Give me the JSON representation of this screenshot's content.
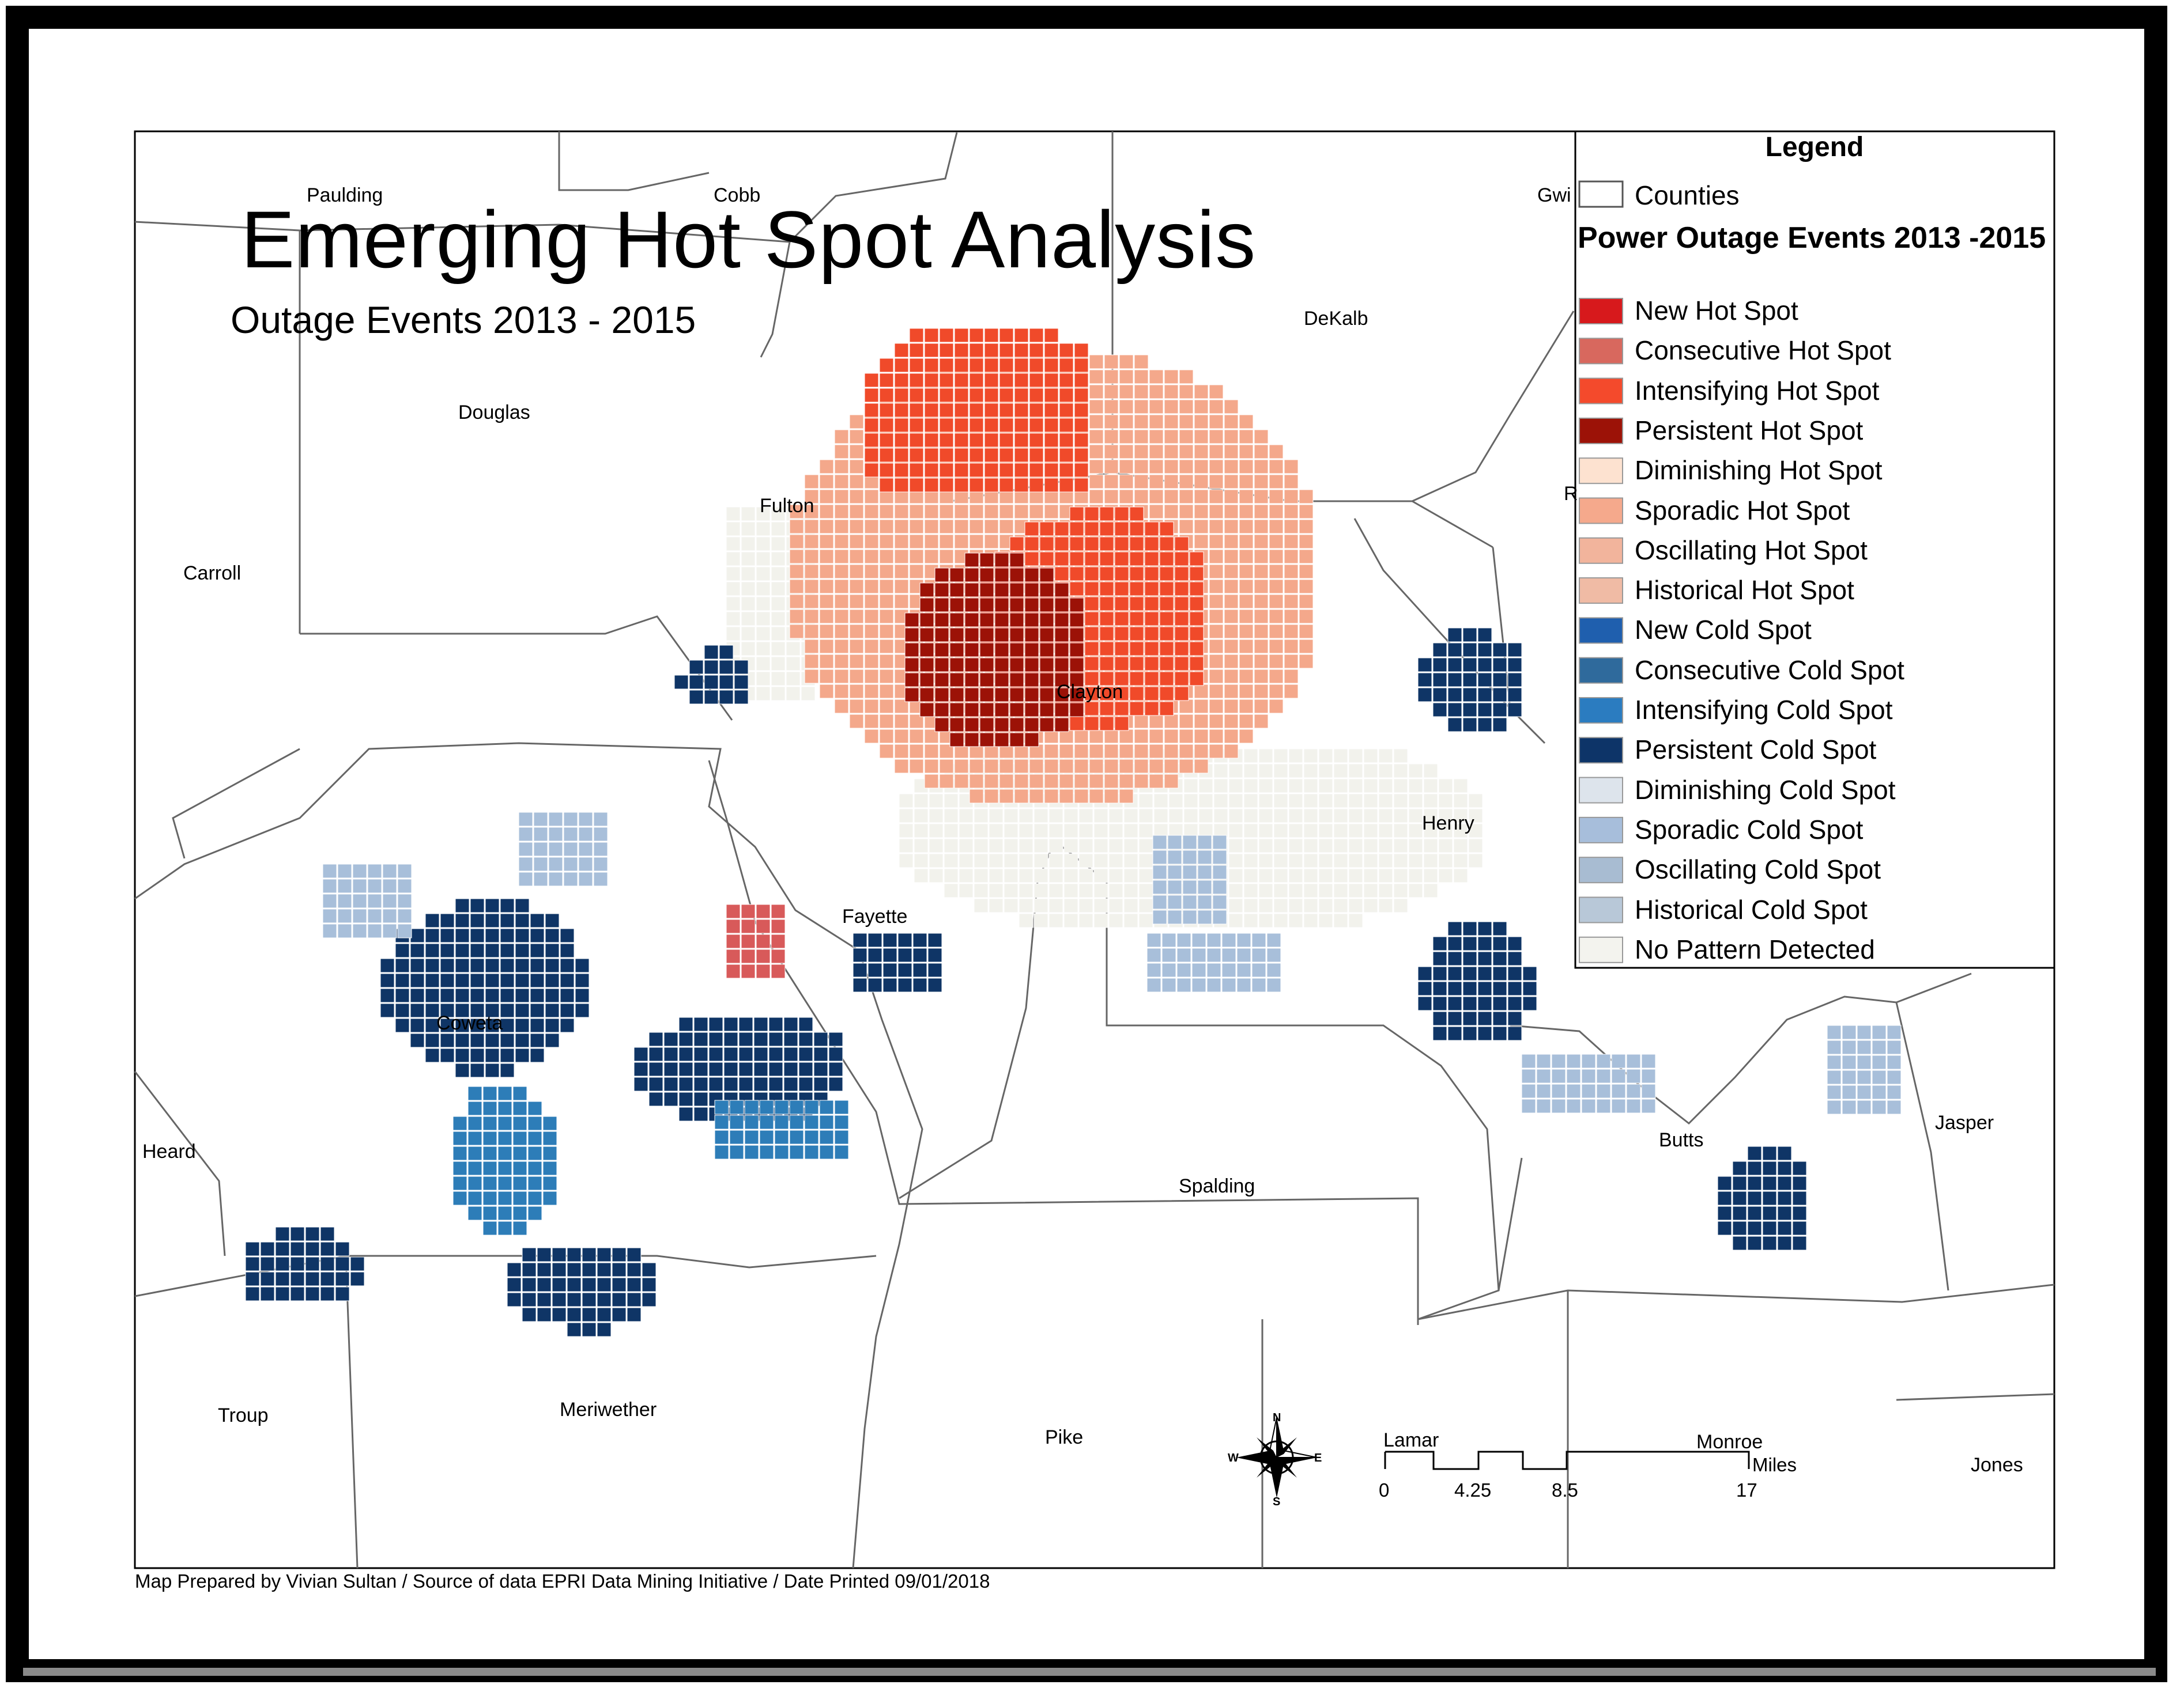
{
  "map": {
    "title": "Emerging Hot Spot Analysis",
    "subtitle": "Outage Events 2013 - 2015",
    "footer": "Map Prepared by Vivian Sultan / Source of data EPRI Data Mining Initiative / Date Printed 09/01/2018"
  },
  "counties": {
    "paulding": "Paulding",
    "cobb": "Cobb",
    "gwinnett": "Gwi",
    "dekalb": "DeKalb",
    "douglas": "Douglas",
    "fulton": "Fulton",
    "carroll": "Carroll",
    "clayton": "Clayton",
    "fayette": "Fayette",
    "henry": "Henry",
    "rockdale": "R",
    "coweta": "Coweta",
    "heard": "Heard",
    "spalding": "Spalding",
    "butts": "Butts",
    "jasper": "Jasper",
    "troup": "Troup",
    "meriwether": "Meriwether",
    "pike": "Pike",
    "lamar": "Lamar",
    "monroe": "Monroe",
    "jones": "Jones"
  },
  "legend": {
    "heading": "Legend",
    "counties_label": "Counties",
    "group_title": "Power Outage Events 2013 -2015",
    "items": [
      {
        "label": "New Hot Spot",
        "color": "#d7191c"
      },
      {
        "label": "Consecutive Hot Spot",
        "color": "#d8685e"
      },
      {
        "label": "Intensifying Hot Spot",
        "color": "#f44a2c"
      },
      {
        "label": "Persistent Hot Spot",
        "color": "#9c1207"
      },
      {
        "label": "Diminishing Hot Spot",
        "color": "#fde2d0"
      },
      {
        "label": "Sporadic Hot Spot",
        "color": "#f5a98c"
      },
      {
        "label": "Oscillating Hot Spot",
        "color": "#f2b49c"
      },
      {
        "label": "Historical Hot Spot",
        "color": "#f0bba5"
      },
      {
        "label": "New Cold Spot",
        "color": "#1f5fae"
      },
      {
        "label": "Consecutive Cold Spot",
        "color": "#2f6a9c"
      },
      {
        "label": "Intensifying Cold Spot",
        "color": "#2b7cc0"
      },
      {
        "label": "Persistent Cold Spot",
        "color": "#0d3468"
      },
      {
        "label": "Diminishing Cold Spot",
        "color": "#dde4ec"
      },
      {
        "label": "Sporadic Cold Spot",
        "color": "#a7bedb"
      },
      {
        "label": "Oscillating Cold Spot",
        "color": "#a8bcd2"
      },
      {
        "label": "Historical Cold Spot",
        "color": "#b8c8d8"
      },
      {
        "label": "No Pattern Detected",
        "color": "#f3f3ee"
      }
    ]
  },
  "scale_bar": {
    "ticks": [
      "0",
      "4.25",
      "8.5",
      "17"
    ],
    "unit": "Miles"
  },
  "north_arrow": {
    "n": "N",
    "s": "S",
    "e": "E",
    "w": "W",
    "icon": "compass-rose-icon"
  }
}
